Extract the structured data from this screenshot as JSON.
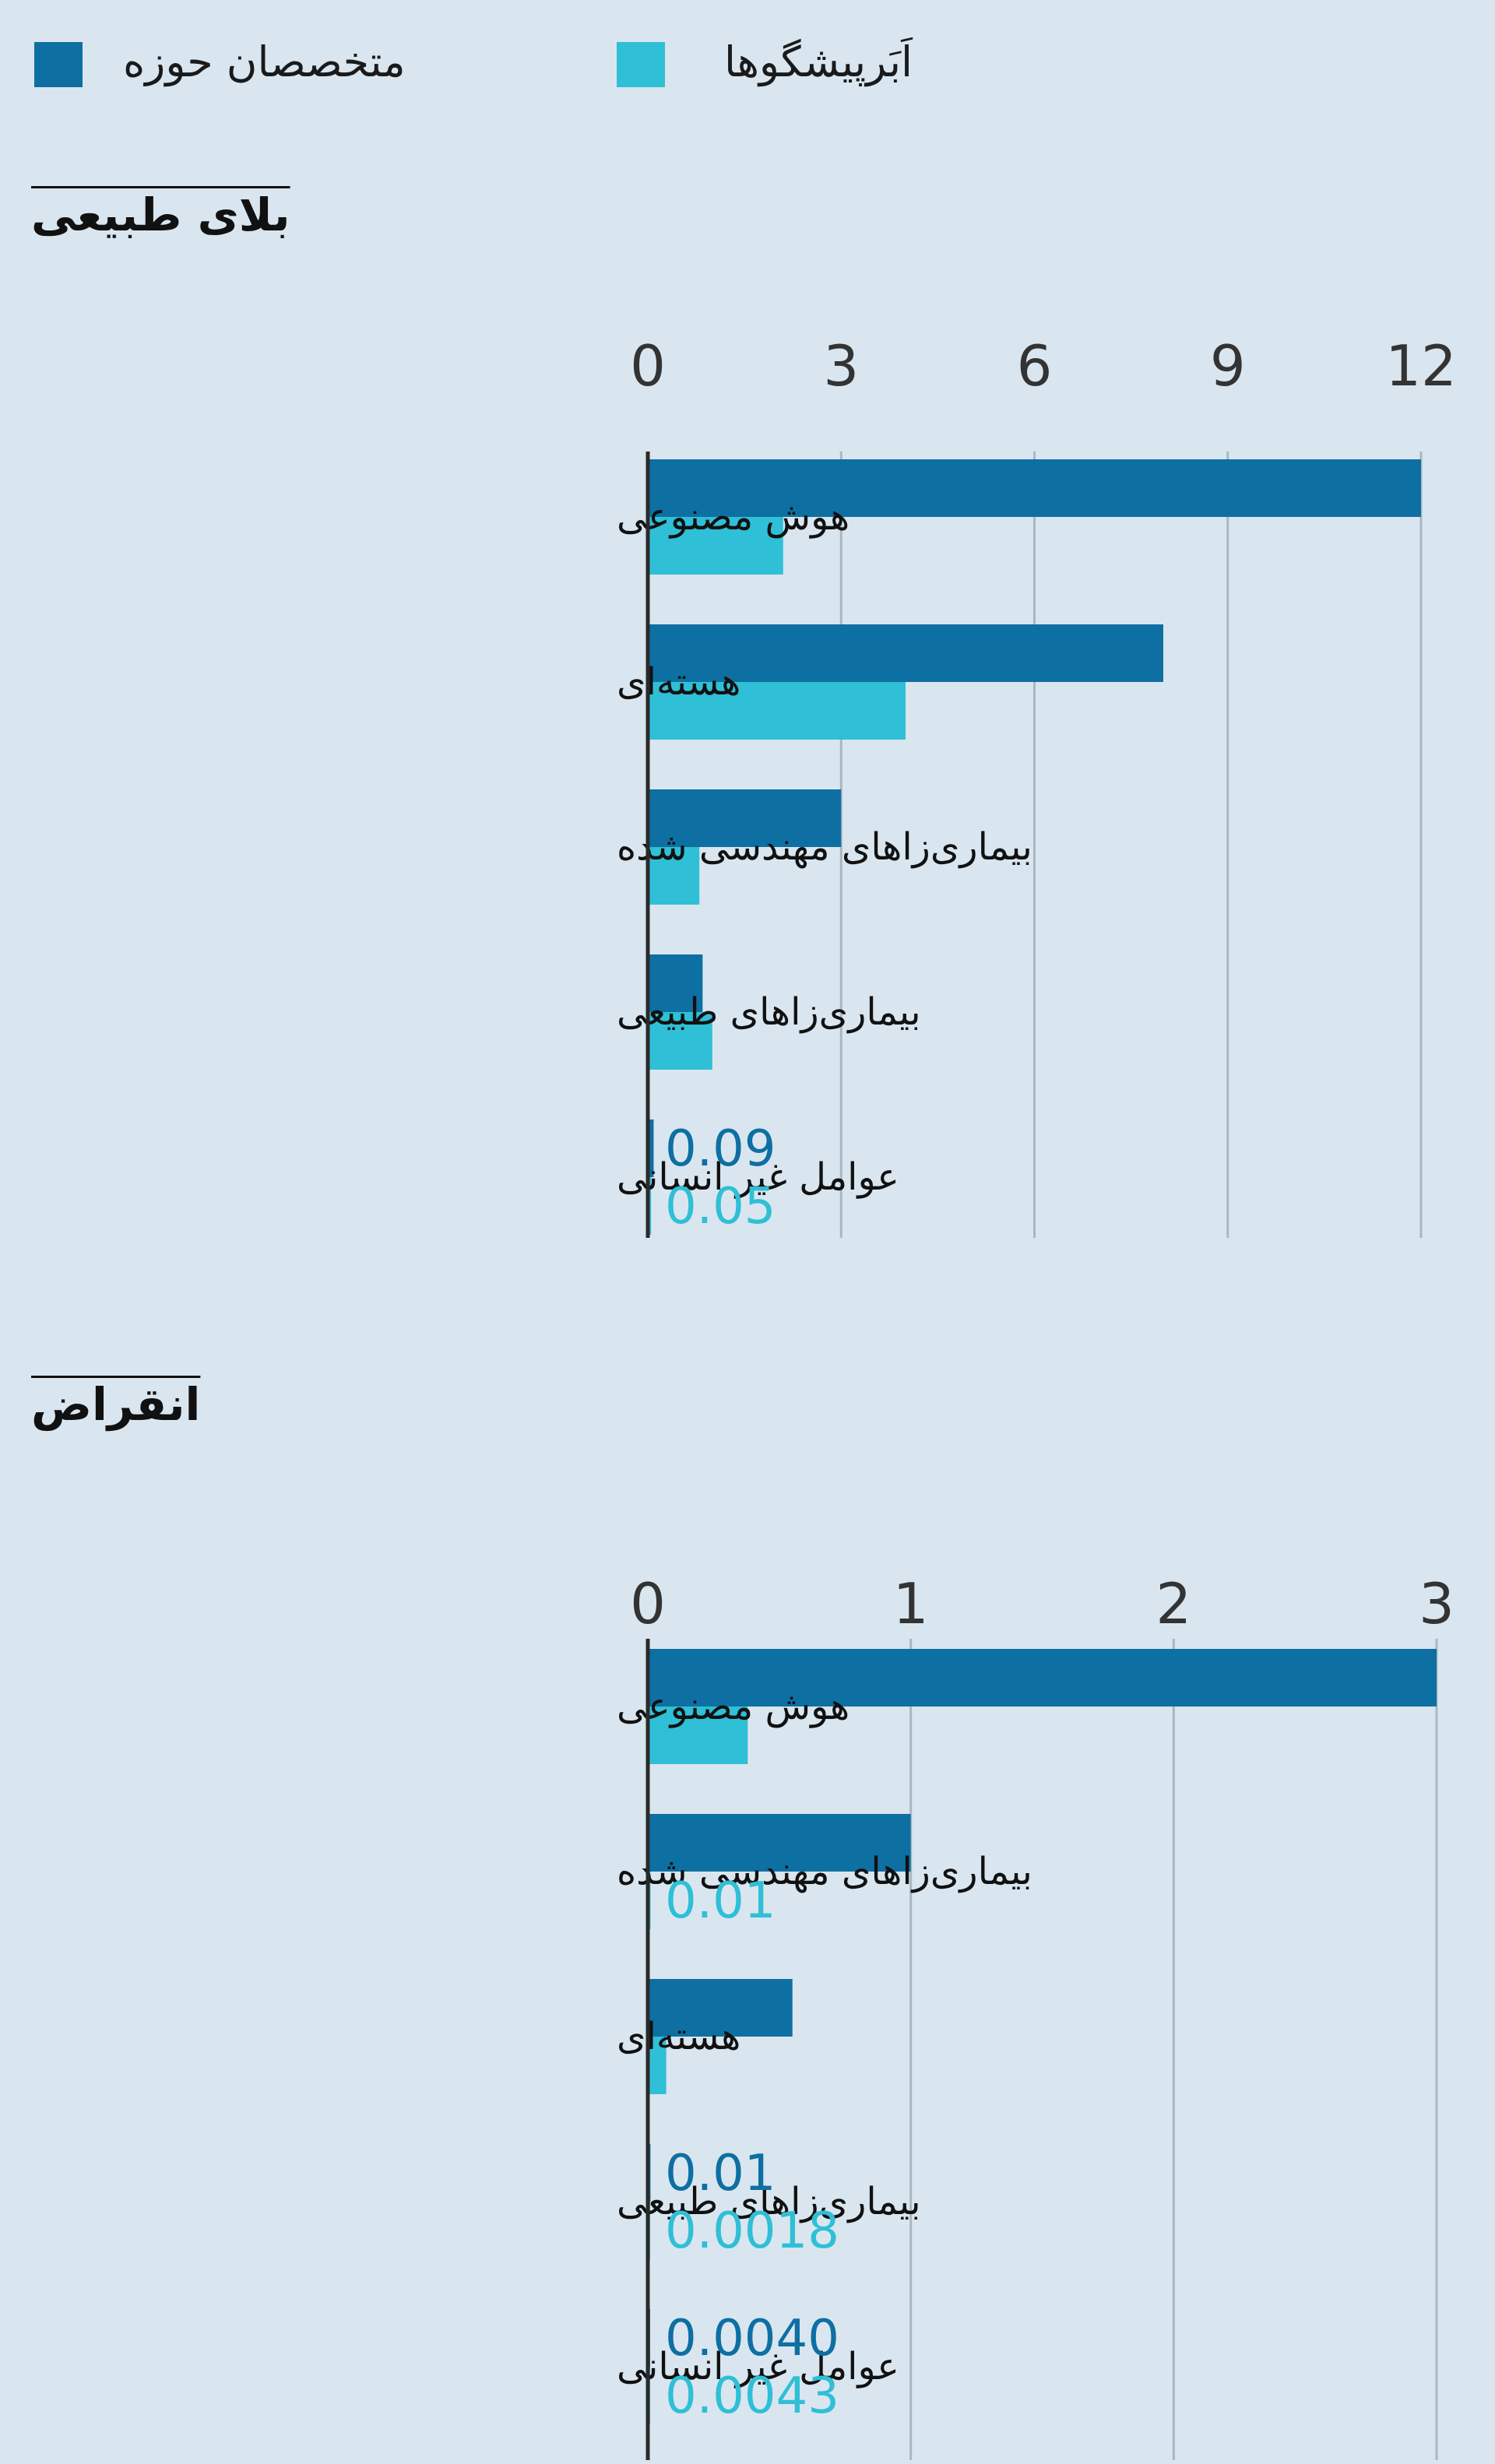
{
  "legend": [
    {
      "label": "متخصصان حوزه",
      "color": "#0e6fa3"
    },
    {
      "label": "اَبَرپیشگوها",
      "color": "#2fbfd6"
    }
  ],
  "sections": [
    {
      "title": "بلای طبیعی"
    },
    {
      "title": "انقراض"
    }
  ],
  "chart_data": [
    {
      "type": "bar",
      "orientation": "horizontal",
      "title": "بلای طبیعی",
      "categories": [
        "هوش مصنوعی",
        "هسته‌ای",
        "بیماری‌زاهای مهندسی شده",
        "بیماری‌زاهای طبیعی",
        "عوامل غیر انسانی"
      ],
      "series": [
        {
          "name": "متخصصان حوزه",
          "color": "#0e6fa3",
          "values": [
            12,
            8,
            3,
            0.85,
            0.09
          ]
        },
        {
          "name": "اَبَرپیشگوها",
          "color": "#2fbfd6",
          "values": [
            2.1,
            4,
            0.8,
            1,
            0.05
          ]
        }
      ],
      "value_labels": [
        {
          "category_index": 4,
          "series_index": 0,
          "text": "0.09"
        },
        {
          "category_index": 4,
          "series_index": 1,
          "text": "0.05"
        }
      ],
      "xlim": [
        0,
        12
      ],
      "ticks": [
        0,
        3,
        6,
        9,
        12
      ],
      "tick_labels": [
        "0",
        "3",
        "6",
        "9",
        "12"
      ],
      "grid": true
    },
    {
      "type": "bar",
      "orientation": "horizontal",
      "title": "انقراض",
      "categories": [
        "هوش مصنوعی",
        "بیماری‌زاهای مهندسی شده",
        "هسته‌ای",
        "بیماری‌زاهای طبیعی",
        "عوامل غیر انسانی"
      ],
      "series": [
        {
          "name": "متخصصان حوزه",
          "color": "#0e6fa3",
          "values": [
            3,
            1,
            0.55,
            0.01,
            0.004
          ]
        },
        {
          "name": "اَبَرپیشگوها",
          "color": "#2fbfd6",
          "values": [
            0.38,
            0.01,
            0.07,
            0.0018,
            0.0043
          ]
        }
      ],
      "value_labels": [
        {
          "category_index": 1,
          "series_index": 1,
          "text": "0.01"
        },
        {
          "category_index": 3,
          "series_index": 0,
          "text": "0.01"
        },
        {
          "category_index": 3,
          "series_index": 1,
          "text": "0.0018"
        },
        {
          "category_index": 4,
          "series_index": 0,
          "text": "0.0040"
        },
        {
          "category_index": 4,
          "series_index": 1,
          "text": "0.0043"
        }
      ],
      "xlim": [
        0,
        3
      ],
      "ticks": [
        0,
        1,
        2,
        3
      ],
      "tick_labels": [
        "0",
        "1",
        "2",
        "3"
      ],
      "grid": true
    }
  ]
}
